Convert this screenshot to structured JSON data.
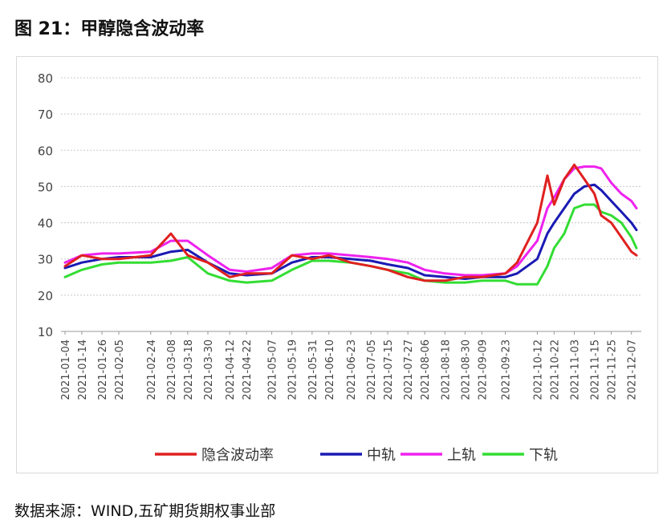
{
  "figure": {
    "title": "图 21：甲醇隐含波动率",
    "source": "数据来源：WIND,五矿期货期权事业部"
  },
  "chart_data": {
    "type": "line",
    "title": "",
    "xlabel": "",
    "ylabel": "",
    "ylim": [
      10,
      80
    ],
    "yticks": [
      10,
      20,
      30,
      40,
      50,
      60,
      70,
      80
    ],
    "grid": "horizontal dotted",
    "legend_position": "bottom",
    "x_tick_labels": [
      "2021-01-04",
      "2021-01-14",
      "2021-01-26",
      "2021-02-05",
      "2021-02-24",
      "2021-03-08",
      "2021-03-18",
      "2021-03-30",
      "2021-04-12",
      "2021-04-22",
      "2021-05-07",
      "2021-05-19",
      "2021-05-31",
      "2021-06-10",
      "2021-06-23",
      "2021-07-05",
      "2021-07-15",
      "2021-07-27",
      "2021-08-06",
      "2021-08-18",
      "2021-08-30",
      "2021-09-09",
      "2021-09-23",
      "2021-10-12",
      "2021-10-22",
      "2021-11-03",
      "2021-11-15",
      "2021-11-25",
      "2021-12-07"
    ],
    "x": [
      "2021-01-04",
      "2021-01-14",
      "2021-01-26",
      "2021-02-05",
      "2021-02-24",
      "2021-03-08",
      "2021-03-18",
      "2021-03-30",
      "2021-04-12",
      "2021-04-22",
      "2021-05-07",
      "2021-05-19",
      "2021-05-31",
      "2021-06-10",
      "2021-06-23",
      "2021-07-05",
      "2021-07-15",
      "2021-07-27",
      "2021-08-06",
      "2021-08-18",
      "2021-08-30",
      "2021-09-09",
      "2021-09-23",
      "2021-09-30",
      "2021-10-12",
      "2021-10-18",
      "2021-10-22",
      "2021-10-28",
      "2021-11-03",
      "2021-11-09",
      "2021-11-15",
      "2021-11-19",
      "2021-11-25",
      "2021-12-01",
      "2021-12-07",
      "2021-12-10"
    ],
    "series": [
      {
        "name": "隐含波动率",
        "color": "#e02020",
        "values": [
          28,
          31,
          30,
          30,
          31,
          37,
          31,
          29,
          25,
          26,
          26,
          31,
          30,
          31,
          29,
          28,
          27,
          25,
          24,
          24,
          25,
          25,
          26,
          29,
          40,
          53,
          45,
          52,
          56,
          52,
          48,
          42,
          40,
          36,
          32,
          31
        ]
      },
      {
        "name": "中轨",
        "color": "#1a1ab4",
        "values": [
          27.5,
          29,
          30,
          30.5,
          30.5,
          32,
          32.5,
          29,
          26,
          25.5,
          26,
          29,
          30.5,
          30.5,
          30,
          29.5,
          28.5,
          27.5,
          25.5,
          25,
          24.5,
          25,
          25,
          26,
          30,
          37,
          40,
          44,
          48,
          50,
          50.5,
          49,
          46,
          43,
          40,
          38
        ]
      },
      {
        "name": "上轨",
        "color": "#ee22ee",
        "values": [
          29,
          31,
          31.5,
          31.5,
          32,
          35,
          35,
          31,
          27,
          26.5,
          27.5,
          31,
          31.5,
          31.5,
          31,
          30.5,
          30,
          29,
          27,
          26,
          25.5,
          25.5,
          26,
          28,
          35,
          44,
          47,
          52,
          55,
          55.5,
          55.5,
          55,
          51,
          48,
          46,
          44
        ]
      },
      {
        "name": "下轨",
        "color": "#33dd33",
        "values": [
          25,
          27,
          28.5,
          29,
          29,
          29.5,
          30.5,
          26,
          24,
          23.5,
          24,
          27,
          29.5,
          29.5,
          29,
          28,
          27,
          26,
          24,
          23.5,
          23.5,
          24,
          24,
          23,
          23,
          28,
          33,
          37,
          44,
          45,
          45,
          43,
          42,
          40,
          36,
          33
        ]
      }
    ]
  }
}
